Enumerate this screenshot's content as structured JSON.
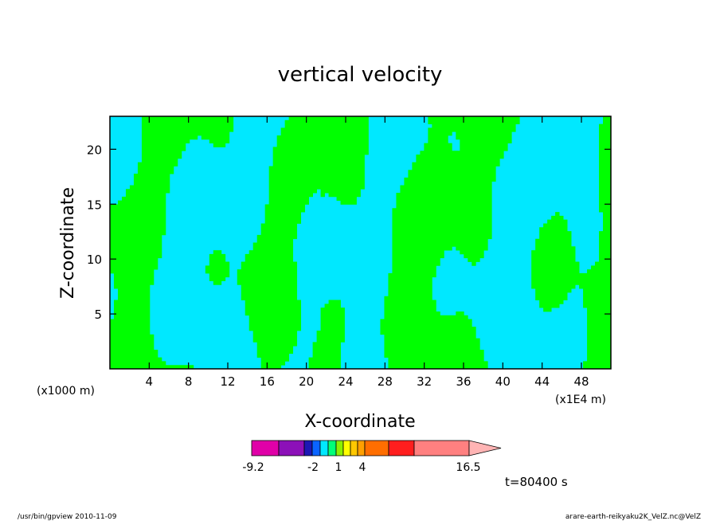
{
  "chart_data": {
    "type": "contour",
    "title": "vertical velocity",
    "xlabel": "X-coordinate",
    "ylabel": "Z-coordinate",
    "x_unit": "(x1000 m)",
    "x_unit2": "(x1E4 m)",
    "xlim": [
      0,
      51
    ],
    "ylim": [
      0,
      23
    ],
    "x_ticks": [
      4,
      8,
      12,
      16,
      20,
      24,
      28,
      32,
      36,
      40,
      44,
      48
    ],
    "y_ticks": [
      5,
      10,
      15,
      20
    ],
    "colorbar": {
      "colors": [
        "#e000a8",
        "#8c10b8",
        "#1c18b4",
        "#0a64ff",
        "#00e8ff",
        "#00ff78",
        "#8cf000",
        "#ffff00",
        "#ffc800",
        "#ffa000",
        "#ff6e00",
        "#ff1e1e",
        "#ff8080"
      ],
      "end_color": "#ffb4b4",
      "labels": [
        "-9.2",
        "-2",
        "1",
        "4",
        "16.5"
      ]
    },
    "field_colors": {
      "negative": "#00e8ff",
      "positive": "#00ff00"
    },
    "time_label": "t=80400 s"
  },
  "footer": {
    "left": "/usr/bin/gpview   2010-11-09",
    "right": "arare-earth-reikyaku2K_VelZ.nc@VelZ"
  }
}
